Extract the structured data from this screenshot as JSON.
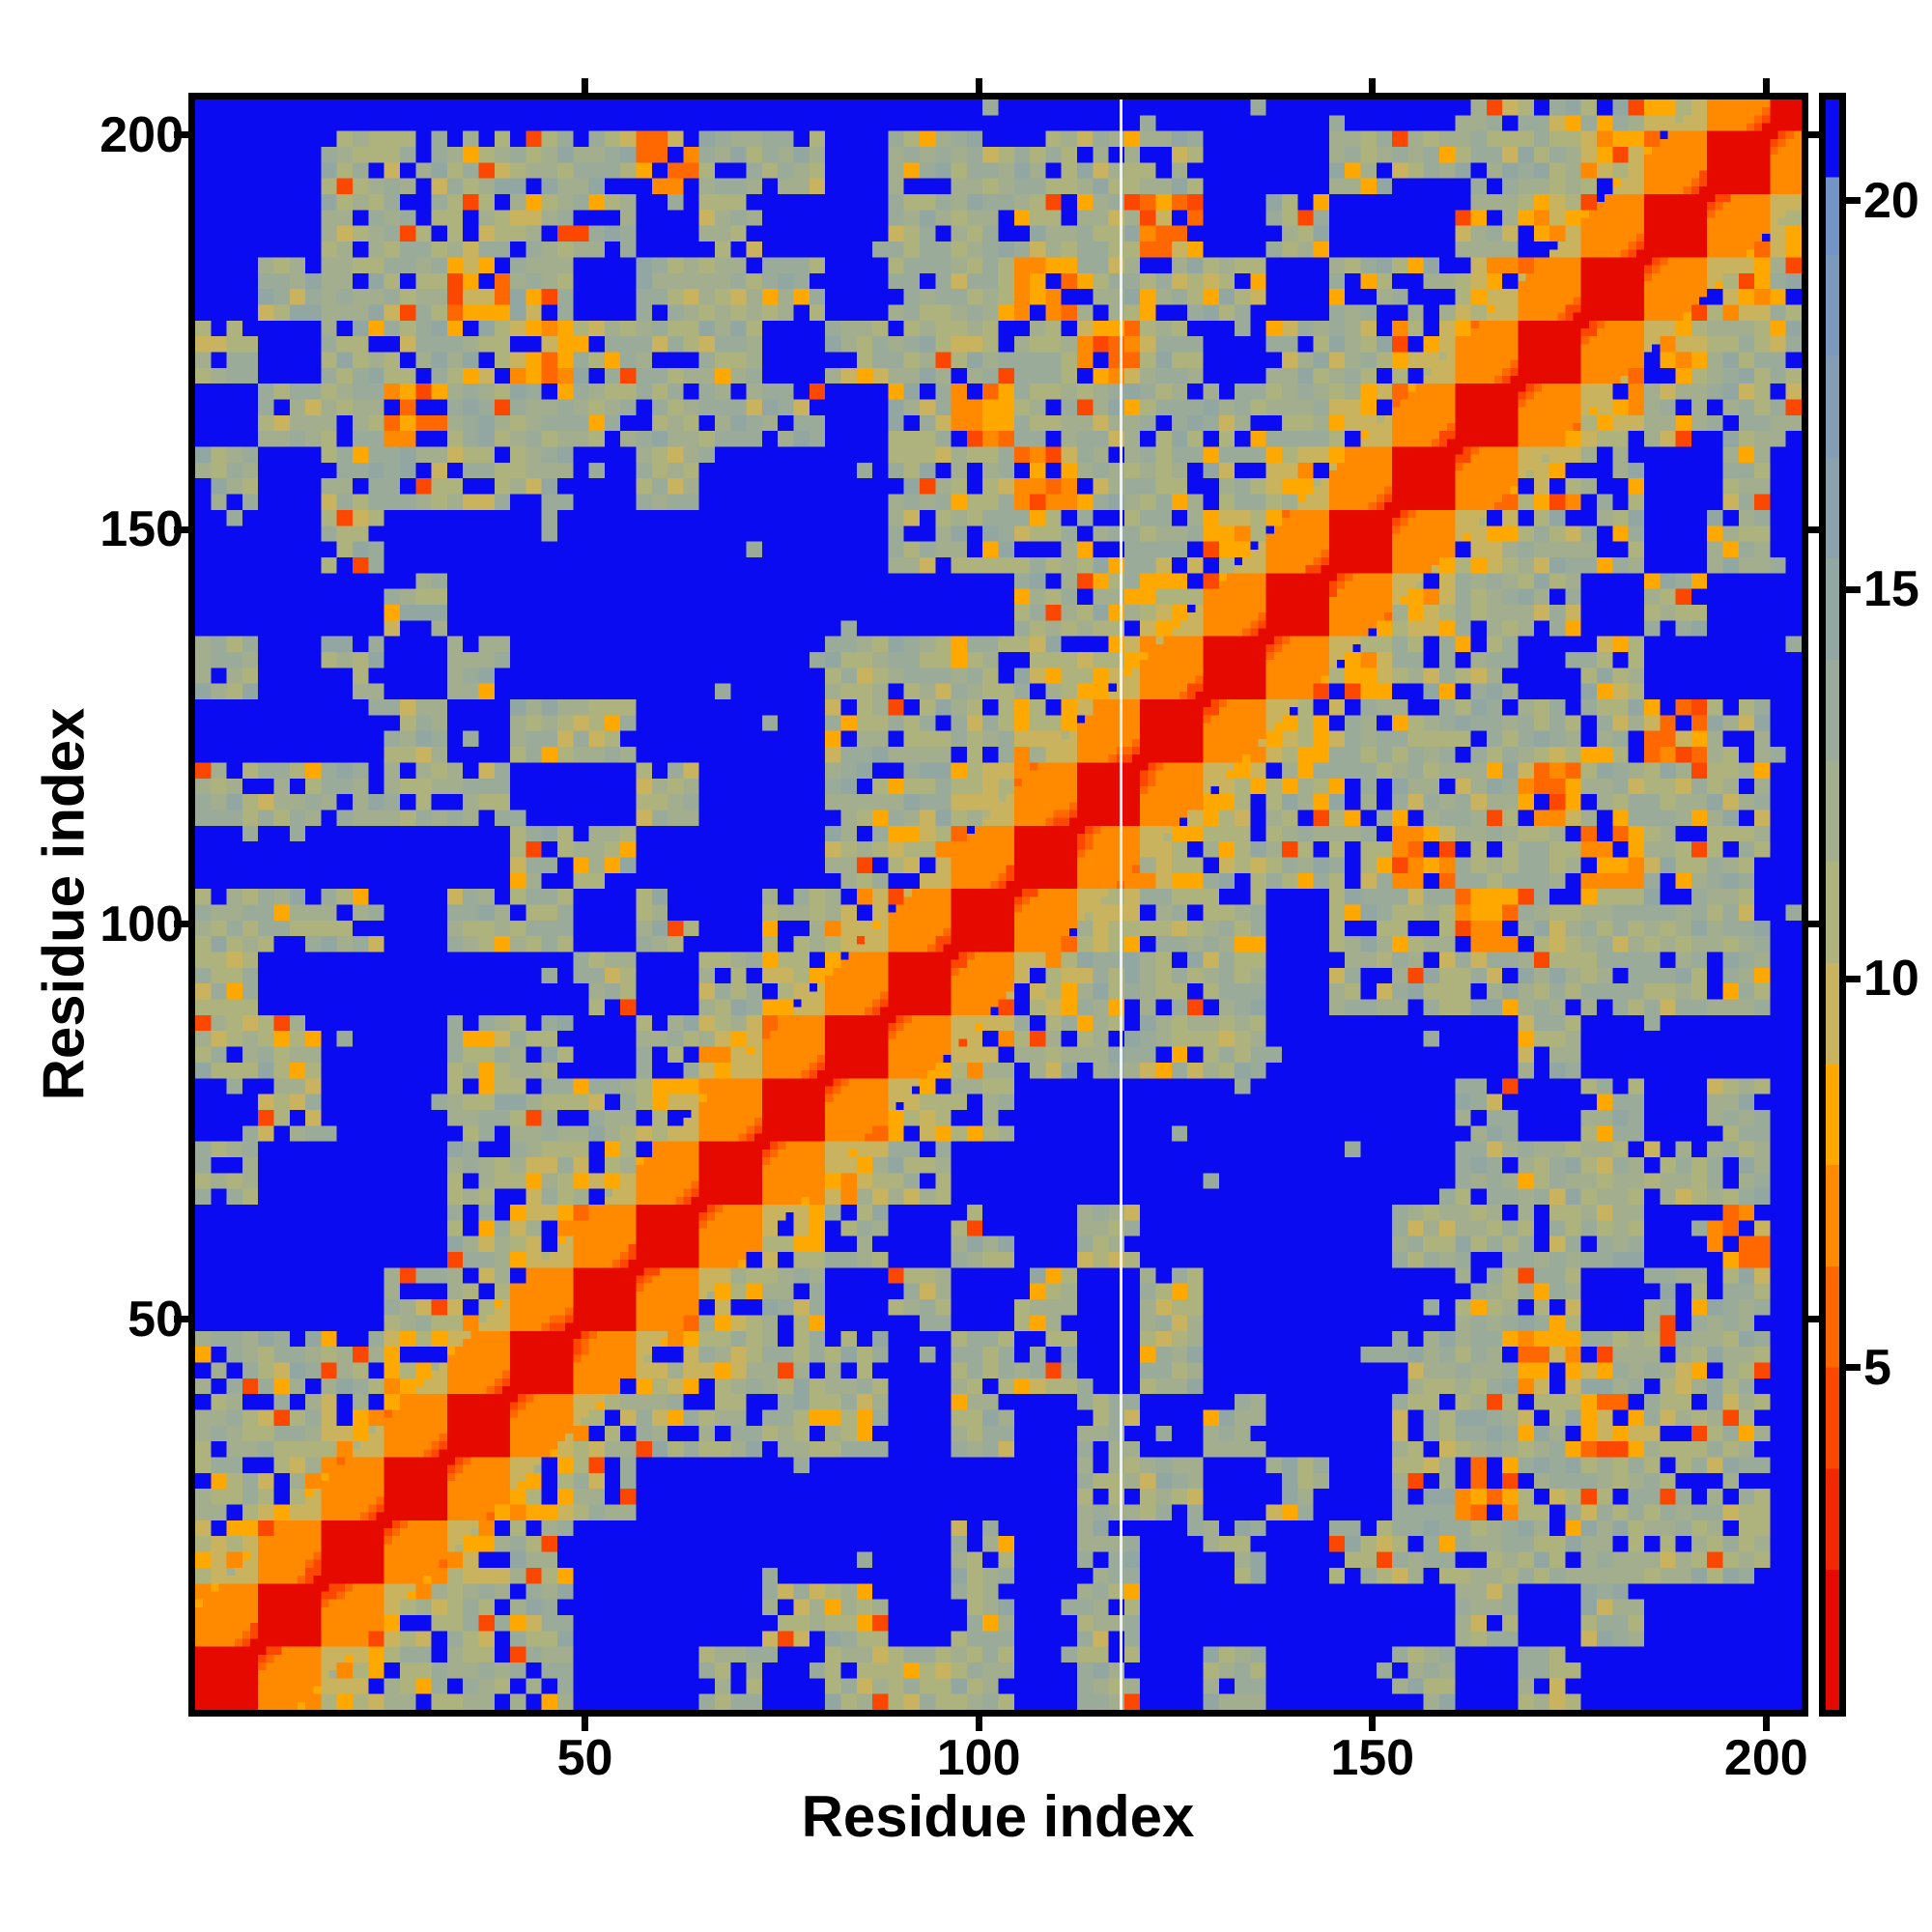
{
  "figure": {
    "background_color": "#ffffff",
    "frame_color": "#000000",
    "far_distance_color": "#0b0bf2",
    "artifact_line_color": "#f0f0fc"
  },
  "chart_data": {
    "type": "heatmap",
    "title": "",
    "xlabel": "Residue index",
    "ylabel": "Residue index",
    "x_range": [
      1,
      204
    ],
    "y_range": [
      1,
      204
    ],
    "x_ticks": [
      50,
      100,
      150,
      200
    ],
    "y_ticks": [
      50,
      100,
      150,
      200
    ],
    "grid": false,
    "colorbar": {
      "orientation": "vertical",
      "position": "right",
      "range": [
        0.6,
        21.3
      ],
      "ticks": [
        20,
        15,
        10,
        5
      ]
    },
    "colormap_value_bands": [
      {
        "max": 2.4,
        "color": "#e60900"
      },
      {
        "max": 3.7,
        "color": "#f22800"
      },
      {
        "max": 5.0,
        "color": "#fc4700"
      },
      {
        "max": 6.3,
        "color": "#ff6800"
      },
      {
        "max": 7.6,
        "color": "#ff8a00"
      },
      {
        "max": 8.9,
        "color": "#ffa800"
      },
      {
        "max": 10.2,
        "color": "#c9b35e"
      },
      {
        "max": 11.5,
        "color": "#aeb37e"
      },
      {
        "max": 12.8,
        "color": "#a3ae8e"
      },
      {
        "max": 14.1,
        "color": "#9aab99"
      },
      {
        "max": 15.4,
        "color": "#92a7a2"
      },
      {
        "max": 16.7,
        "color": "#8aa2ab"
      },
      {
        "max": 18.0,
        "color": "#839eb4"
      },
      {
        "max": 19.3,
        "color": "#7b99bd"
      },
      {
        "max": 20.3,
        "color": "#7494c6"
      },
      {
        "max": 21.4,
        "color": "#0b0bf2"
      }
    ],
    "matrix_encoding": {
      "description": "Symmetric residue-residue distance matrix, coarse-grained: each char = 8x8 residue block, rows listed bottom-to-top, chars left-to-right.",
      "cell_size_residues": 8,
      "value_legend": {
        ".": 21.0,
        "b": 18.4,
        "g": 14.8,
        "s": 12.2,
        "y": 9.6,
        "o": 7.0,
        "O": 4.3,
        "r": 1.5
      },
      "rows_bottom_to_top": [
        "roysss..s.sss.s.s..s.s....",
        "oroyss...ss.s.s.....s.s...",
        "yoroys......s.s.s.sssssss.",
        "syoroys.......ss.s.sossss.",
        "ssyoroyssss.s.s.s..sssoss.",
        "sssyoroysss.ss.s...ssosss.",
        "...syoroys.s.s.s....ss.ss.",
        "....syoroys.s.s....ssss.o.",
        "s...ssyoroys........sssss.",
        ".s..sssyoroys.......s.s.s.",
        "ss..ss.syoroyssss....s....",
        "s.....s.syoroysss.sssssss.",
        "sss.ss.s.syoroyss.ssossss.",
        ".....ss...syoroysssossoss.",
        "sssss..s..ssyoroyssssosss.",
        "...s.ss...sssyoroysssssos.",
        "s.s.s.....ssssyoroyss.s...",
        "...s.........ssyoroyss.s..",
        "..s........sssssyoroyss.s.",
        "s.ssss.s...ssosssyoroys.s.",
        ".ssossssss.sosssssyoroysss",
        "s.sssosss.ssssos.ssyoroyss",
        ".sssos.sss.ssosss.ssyoroys",
        "..sssss.s..sssso.s..syoroy",
        "..sssssoss.sssss..ssssyoro",
        "....................sssyor"
      ]
    },
    "diagonal_model": "value = 0.8 + 1.55 * |i - j|  (applied for |i-j| <= 12; red self-contact diagonal with orange flanks fading to blue)",
    "artifact_column_residue": 118,
    "noise_seed": 11
  }
}
